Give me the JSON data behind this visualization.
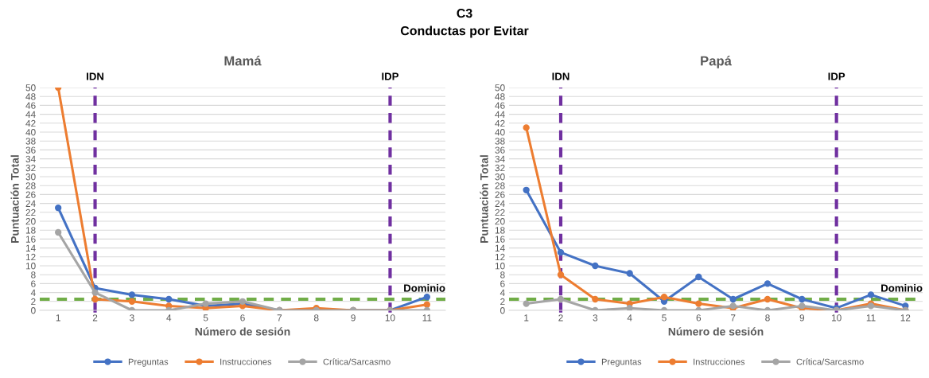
{
  "chart_data": [
    {
      "type": "line",
      "title": "Mamá",
      "xlabel": "Número de sesión",
      "ylabel": "Puntuación Total",
      "annotations": [
        "C3",
        "Conductas por Evitar"
      ],
      "categories": [
        "1",
        "2",
        "3",
        "4",
        "5",
        "6",
        "7",
        "8",
        "9",
        "10",
        "11"
      ],
      "series": [
        {
          "name": "Preguntas",
          "color": "#4472c4",
          "values": [
            23,
            5,
            3.5,
            2.5,
            1,
            1.5,
            0,
            0,
            0,
            0,
            3
          ]
        },
        {
          "name": "Instrucciones",
          "color": "#ed7d31",
          "values": [
            50,
            2.5,
            2,
            1,
            0.5,
            1,
            0,
            0.5,
            0,
            0,
            1.3
          ]
        },
        {
          "name": "Crítica/Sarcasmo",
          "color": "#a5a5a5",
          "values": [
            17.5,
            4,
            0,
            0,
            1.5,
            2,
            0,
            0,
            0,
            0,
            0
          ]
        }
      ],
      "ylim": [
        0,
        50
      ],
      "yticks": [
        0,
        2,
        4,
        6,
        8,
        10,
        12,
        14,
        16,
        18,
        20,
        22,
        24,
        26,
        28,
        30,
        32,
        34,
        36,
        38,
        40,
        42,
        44,
        46,
        48,
        50
      ],
      "ref_lines": [
        {
          "axis": "x",
          "value": "2",
          "label": "IDN",
          "color": "#7030a0",
          "line_style": "dashed"
        },
        {
          "axis": "x",
          "value": "10",
          "label": "IDP",
          "color": "#7030a0",
          "line_style": "dashed"
        },
        {
          "axis": "y",
          "value": 2.5,
          "label": "Dominio",
          "color": "#70ad47",
          "line_style": "dashed"
        }
      ],
      "grid": "y",
      "legend": "bottom",
      "marker": "circle",
      "line_style": "solid"
    },
    {
      "type": "line",
      "title": "Papá",
      "xlabel": "Número de sesión",
      "ylabel": "Puntuación Total",
      "categories": [
        "1",
        "2",
        "3",
        "4",
        "5",
        "6",
        "7",
        "8",
        "9",
        "10",
        "11",
        "12"
      ],
      "series": [
        {
          "name": "Preguntas",
          "color": "#4472c4",
          "values": [
            27,
            13,
            10,
            8.3,
            2,
            7.5,
            2.5,
            6,
            2.5,
            0.5,
            3.5,
            1
          ]
        },
        {
          "name": "Instrucciones",
          "color": "#ed7d31",
          "values": [
            41,
            8,
            2.5,
            1.5,
            3,
            1.5,
            0.5,
            2.5,
            0.5,
            0,
            1.5,
            0
          ]
        },
        {
          "name": "Crítica/Sarcasmo",
          "color": "#a5a5a5",
          "values": [
            1.5,
            2.5,
            0,
            0.5,
            0,
            0,
            1,
            0,
            1,
            0,
            1,
            0
          ]
        }
      ],
      "ylim": [
        0,
        50
      ],
      "yticks": [
        0,
        2,
        4,
        6,
        8,
        10,
        12,
        14,
        16,
        18,
        20,
        22,
        24,
        26,
        28,
        30,
        32,
        34,
        36,
        38,
        40,
        42,
        44,
        46,
        48,
        50
      ],
      "ref_lines": [
        {
          "axis": "x",
          "value": "2",
          "label": "IDN",
          "color": "#7030a0",
          "line_style": "dashed"
        },
        {
          "axis": "x",
          "value": "10",
          "label": "IDP",
          "color": "#7030a0",
          "line_style": "dashed"
        },
        {
          "axis": "y",
          "value": 2.5,
          "label": "Dominio",
          "color": "#70ad47",
          "line_style": "dashed"
        }
      ],
      "grid": "y",
      "legend": "bottom",
      "marker": "circle",
      "line_style": "solid"
    }
  ]
}
